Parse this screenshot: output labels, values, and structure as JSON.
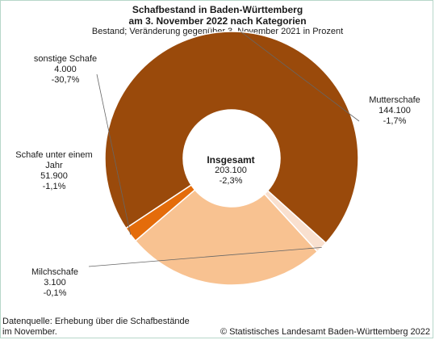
{
  "chart_data": {
    "type": "pie",
    "title_line1": "Schafbestand in Baden-Württemberg",
    "title_line2": "am 3. November 2022 nach Kategorien",
    "subtitle": "Bestand; Veränderung gegenüber 3. November 2021 in Prozent",
    "center": {
      "label": "Insgesamt",
      "value": "203.100",
      "change": "-2,3%"
    },
    "slices": [
      {
        "name": "Mutterschafe",
        "name_lines": [
          "Mutterschafe"
        ],
        "value": 144100,
        "value_text": "144.100",
        "change": "-1,7%",
        "color": "#9a4a0b"
      },
      {
        "name": "Milchschafe",
        "name_lines": [
          "Milchschafe"
        ],
        "value": 3100,
        "value_text": "3.100",
        "change": "-0,1%",
        "color": "#f9e0cf"
      },
      {
        "name": "Schafe unter einem Jahr",
        "name_lines": [
          "Schafe unter einem",
          "Jahr"
        ],
        "value": 51900,
        "value_text": "51.900",
        "change": "-1,1%",
        "color": "#f8c291"
      },
      {
        "name": "sonstige Schafe",
        "name_lines": [
          "sonstige Schafe"
        ],
        "value": 4000,
        "value_text": "4.000",
        "change": "-30,7%",
        "color": "#e46c0a"
      }
    ]
  },
  "footer": {
    "source_line1": "Datenquelle: Erhebung über die Schafbestände",
    "source_line2": "im November.",
    "copyright": "© Statistisches Landesamt Baden-Württemberg 2022"
  }
}
